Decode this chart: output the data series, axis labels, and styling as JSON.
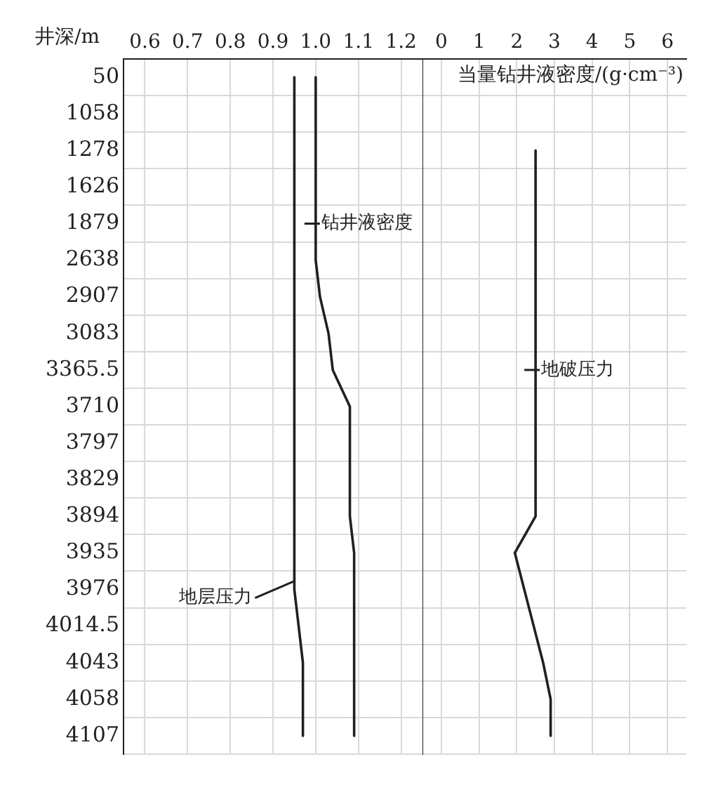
{
  "chart_data": [
    {
      "type": "line",
      "orientation": "horizontal",
      "ylabel": "井深/m",
      "categories": [
        "50",
        "1058",
        "1278",
        "1626",
        "1879",
        "2638",
        "2907",
        "3083",
        "3365.5",
        "3710",
        "3797",
        "3829",
        "3894",
        "3935",
        "3976",
        "4014.5",
        "4043",
        "4058",
        "4107"
      ],
      "xlim": [
        0.55,
        1.25
      ],
      "xticks": [
        0.6,
        0.7,
        0.8,
        0.9,
        {
          "value": 1.0,
          "label": "1.0"
        },
        1.1,
        1.2
      ],
      "series": [
        {
          "name": "钻井液密度",
          "color": "#231f20",
          "values": [
            1.0,
            1.0,
            1.0,
            1.0,
            1.0,
            1.0,
            1.01,
            1.03,
            1.04,
            1.08,
            1.08,
            1.08,
            1.08,
            1.09,
            1.09,
            1.09,
            1.09,
            1.09,
            1.09
          ]
        },
        {
          "name": "地层压力",
          "color": "#231f20",
          "values": [
            0.95,
            0.95,
            0.95,
            0.95,
            0.95,
            0.95,
            0.95,
            0.95,
            0.95,
            0.95,
            0.95,
            0.95,
            0.95,
            0.95,
            0.95,
            0.96,
            0.97,
            0.97,
            0.97
          ]
        }
      ],
      "grid": true,
      "marker": "none",
      "line_style": "solid"
    },
    {
      "type": "line",
      "orientation": "horizontal",
      "xlabel": "当量钻井液密度/(g·cm⁻³)",
      "categories": [
        "50",
        "1058",
        "1278",
        "1626",
        "1879",
        "2638",
        "2907",
        "3083",
        "3365.5",
        "3710",
        "3797",
        "3829",
        "3894",
        "3935",
        "3976",
        "4014.5",
        "4043",
        "4058",
        "4107"
      ],
      "xlim": [
        -0.5,
        6.5
      ],
      "xticks": [
        0,
        1,
        2,
        3,
        4,
        5,
        6
      ],
      "series": [
        {
          "name": "地破压力",
          "color": "#231f20",
          "values": [
            null,
            null,
            2.5,
            2.5,
            2.5,
            2.5,
            2.5,
            2.5,
            2.5,
            2.5,
            2.5,
            2.5,
            2.5,
            1.95,
            2.2,
            2.45,
            2.7,
            2.9,
            2.9
          ]
        }
      ],
      "grid": true,
      "marker": "none",
      "line_style": "solid",
      "tick_labels": "x"
    }
  ]
}
